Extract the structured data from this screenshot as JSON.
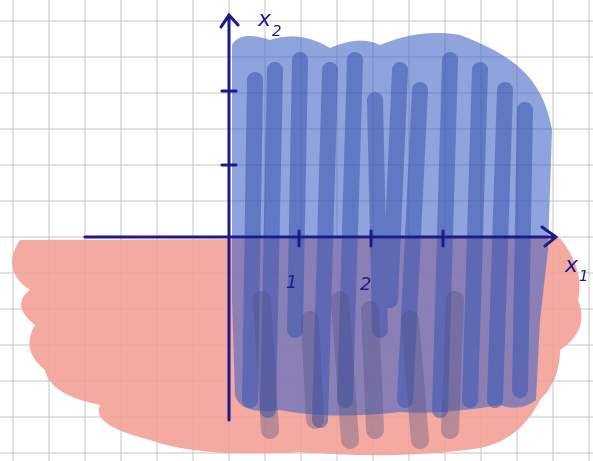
{
  "axis_labels": {
    "horizontal": {
      "letter": "x",
      "subscript": "1"
    },
    "vertical": {
      "letter": "x",
      "subscript": "2"
    }
  },
  "horizontal_tick_labels": [
    "1",
    "2"
  ]
}
